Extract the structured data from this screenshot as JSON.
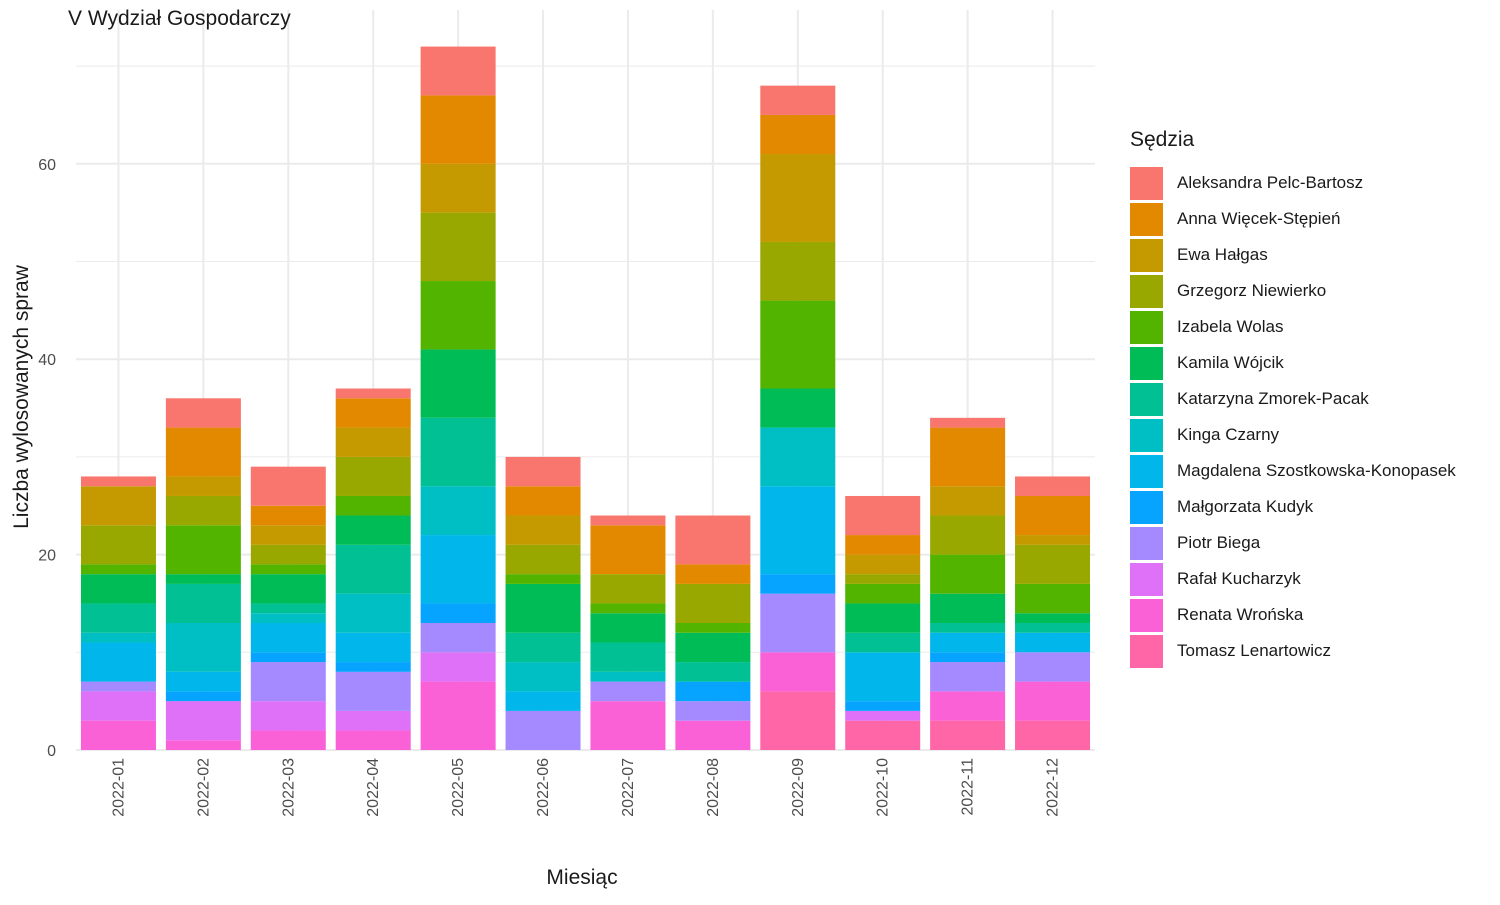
{
  "chart_data": {
    "type": "bar",
    "stacked": true,
    "title": "V Wydział Gospodarczy",
    "xlabel": "Miesiąc",
    "ylabel": "Liczba wylosowanych spraw",
    "ylim": [
      0,
      75
    ],
    "yticks": [
      0,
      20,
      40,
      60
    ],
    "grid": true,
    "legend_title": "Sędzia",
    "legend_position": "right",
    "categories": [
      "2022-01",
      "2022-02",
      "2022-03",
      "2022-04",
      "2022-05",
      "2022-06",
      "2022-07",
      "2022-08",
      "2022-09",
      "2022-10",
      "2022-11",
      "2022-12"
    ],
    "series": [
      {
        "name": "Aleksandra Pelc-Bartosz",
        "color": "#F8766D",
        "values": [
          1,
          3,
          4,
          1,
          5,
          3,
          1,
          5,
          3,
          4,
          1,
          2
        ]
      },
      {
        "name": "Anna Więcek-Stępień",
        "color": "#E38900",
        "values": [
          0,
          5,
          2,
          3,
          7,
          3,
          5,
          2,
          4,
          2,
          6,
          4
        ]
      },
      {
        "name": "Ewa Hałgas",
        "color": "#C49A00",
        "values": [
          4,
          2,
          2,
          3,
          5,
          3,
          0,
          0,
          9,
          2,
          3,
          1
        ]
      },
      {
        "name": "Grzegorz Niewierko",
        "color": "#99A800",
        "values": [
          4,
          3,
          2,
          4,
          7,
          3,
          3,
          4,
          6,
          1,
          4,
          4
        ]
      },
      {
        "name": "Izabela Wolas",
        "color": "#53B400",
        "values": [
          1,
          5,
          1,
          2,
          7,
          1,
          1,
          1,
          9,
          2,
          4,
          3
        ]
      },
      {
        "name": "Kamila Wójcik",
        "color": "#00BC56",
        "values": [
          3,
          1,
          3,
          3,
          7,
          5,
          3,
          3,
          4,
          3,
          3,
          1
        ]
      },
      {
        "name": "Katarzyna Zmorek-Pacak",
        "color": "#00C094",
        "values": [
          3,
          4,
          1,
          5,
          7,
          3,
          3,
          2,
          0,
          2,
          1,
          1
        ]
      },
      {
        "name": "Kinga Czarny",
        "color": "#00BFC4",
        "values": [
          1,
          5,
          1,
          4,
          5,
          3,
          1,
          0,
          6,
          0,
          0,
          0
        ]
      },
      {
        "name": "Magdalena Szostkowska-Konopasek",
        "color": "#00B6EB",
        "values": [
          4,
          2,
          3,
          3,
          7,
          2,
          0,
          0,
          9,
          5,
          2,
          2
        ]
      },
      {
        "name": "Małgorzata Kudyk",
        "color": "#06A4FF",
        "values": [
          0,
          1,
          1,
          1,
          2,
          0,
          0,
          2,
          2,
          1,
          1,
          0
        ]
      },
      {
        "name": "Piotr Biega",
        "color": "#A58AFF",
        "values": [
          1,
          0,
          4,
          4,
          3,
          4,
          2,
          2,
          6,
          0,
          3,
          3
        ]
      },
      {
        "name": "Rafał Kucharzyk",
        "color": "#DF70F8",
        "values": [
          3,
          4,
          3,
          2,
          3,
          0,
          0,
          0,
          0,
          1,
          0,
          0
        ]
      },
      {
        "name": "Renata Wrońska",
        "color": "#FB61D7",
        "values": [
          3,
          1,
          2,
          2,
          7,
          0,
          5,
          3,
          4,
          0,
          3,
          4
        ]
      },
      {
        "name": "Tomasz Lenartowicz",
        "color": "#FF66A8",
        "values": [
          0,
          0,
          0,
          0,
          0,
          0,
          0,
          0,
          6,
          3,
          3,
          3
        ]
      }
    ]
  }
}
